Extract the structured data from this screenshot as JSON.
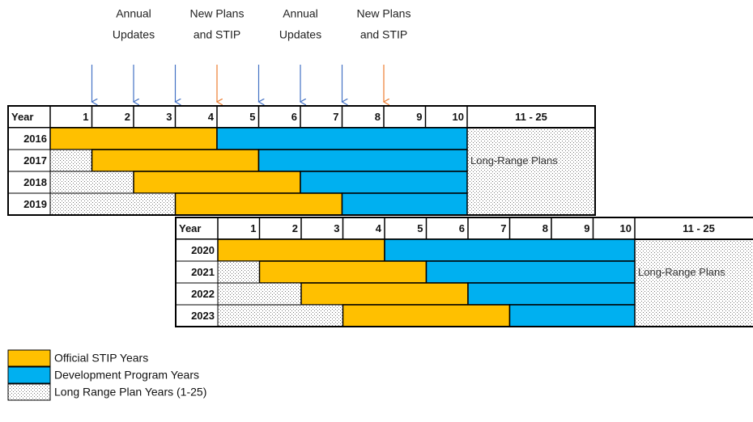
{
  "annotations": [
    {
      "lines": [
        "Annual",
        "Updates"
      ]
    },
    {
      "lines": [
        "New Plans",
        "and STIP"
      ]
    },
    {
      "lines": [
        "Annual",
        "Updates"
      ]
    },
    {
      "lines": [
        "New Plans",
        "and STIP"
      ]
    }
  ],
  "tables": [
    {
      "header": [
        "Year",
        "1",
        "2",
        "3",
        "4",
        "5",
        "6",
        "7",
        "8",
        "9",
        "10",
        "11 - 25"
      ],
      "years": [
        "2016",
        "2017",
        "2018",
        "2019"
      ],
      "long_range_label": "Long-Range Plans"
    },
    {
      "header": [
        "Year",
        "1",
        "2",
        "3",
        "4",
        "5",
        "6",
        "7",
        "8",
        "9",
        "10",
        "11 - 25"
      ],
      "years": [
        "2020",
        "2021",
        "2022",
        "2023"
      ],
      "long_range_label": "Long-Range Plans"
    }
  ],
  "legend": [
    {
      "label": "Official STIP Years"
    },
    {
      "label": "Development Program Years"
    },
    {
      "label": "Long Range Plan Years (1-25)"
    }
  ]
}
